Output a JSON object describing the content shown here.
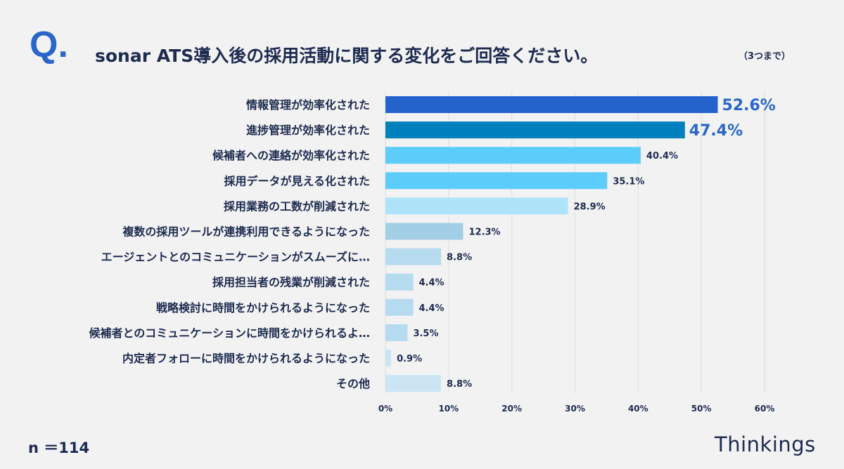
{
  "header": {
    "q_mark": "Q.",
    "title": "sonar ATS導入後の採用活動に関する変化をご回答ください。",
    "note": "（3つまで）"
  },
  "footer": {
    "sample_size": "n ＝114",
    "brand": "Thinkings"
  },
  "colors": {
    "accent": "#2a66c8",
    "text": "#1d2b4f"
  },
  "chart_data": {
    "type": "bar",
    "orientation": "horizontal",
    "title": "sonar ATS導入後の採用活動に関する変化をご回答ください。",
    "xlabel": "",
    "ylabel": "",
    "xlim": [
      0,
      60
    ],
    "x_ticks": [
      0,
      10,
      20,
      30,
      40,
      50,
      60
    ],
    "x_tick_labels": [
      "0%",
      "10%",
      "20%",
      "30%",
      "40%",
      "50%",
      "60%"
    ],
    "grid": true,
    "categories": [
      "情報管理が効率化された",
      "進捗管理が効率化された",
      "候補者への連絡が効率化された",
      "採用データが見える化された",
      "採用業務の工数が削減された",
      "複数の採用ツールが連携利用できるようになった",
      "エージェントとのコミュニケーションがスムーズに…",
      "採用担当者の残業が削減された",
      "戦略検討に時間をかけられるようになった",
      "候補者とのコミュニケーションに時間をかけられるよ…",
      "内定者フォローに時間をかけられるようになった",
      "その他"
    ],
    "values": [
      52.6,
      47.4,
      40.4,
      35.1,
      28.9,
      12.3,
      8.8,
      4.4,
      4.4,
      3.5,
      0.9,
      8.8
    ],
    "value_labels": [
      "52.6%",
      "47.4%",
      "40.4%",
      "35.1%",
      "28.9%",
      "12.3%",
      "8.8%",
      "4.4%",
      "4.4%",
      "3.5%",
      "0.9%",
      "8.8%"
    ],
    "bar_colors": [
      "#2563cc",
      "#0080bd",
      "#5ccdfa",
      "#5ccdfa",
      "#aee3fa",
      "#a2cfe6",
      "#b6daee",
      "#b6daee",
      "#b6daee",
      "#b6daee",
      "#cbe5f3",
      "#cbe5f3"
    ],
    "highlight_top": 2
  }
}
